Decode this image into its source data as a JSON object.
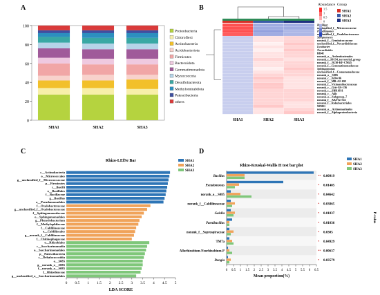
{
  "panel_letters": [
    "A",
    "B",
    "C",
    "D"
  ],
  "chart_data": [
    {
      "panel": "A",
      "type": "bar",
      "stacked": true,
      "categories": [
        "SHA1",
        "SHA2",
        "SHA3"
      ],
      "ylim": [
        0,
        100
      ],
      "yticks": [
        "0",
        "20",
        "40",
        "60",
        "80",
        "100"
      ],
      "legend_position": "right",
      "series": [
        {
          "name": "Proteobacteria",
          "color": "#b5d33f",
          "values": [
            27,
            27,
            27
          ]
        },
        {
          "name": "Chloroflexi",
          "color": "#f7efa9",
          "values": [
            7,
            7,
            6
          ]
        },
        {
          "name": "Actinobacteria",
          "color": "#f2c02a",
          "values": [
            8,
            8,
            10
          ]
        },
        {
          "name": "Acidobacteriota",
          "color": "#f8d2cc",
          "values": [
            5,
            6,
            5
          ]
        },
        {
          "name": "Firmicutes",
          "color": "#f1a6a6",
          "values": [
            13,
            11,
            11
          ]
        },
        {
          "name": "Bacteroidota",
          "color": "#efc9e0",
          "values": [
            6,
            6,
            6
          ]
        },
        {
          "name": "Gemmatimonadota",
          "color": "#a05a9a",
          "values": [
            10,
            10,
            10
          ]
        },
        {
          "name": "Myxococcota",
          "color": "#b5d4e8",
          "values": [
            6,
            6,
            6
          ]
        },
        {
          "name": "Desulfobacterota",
          "color": "#39a8a4",
          "values": [
            6,
            6,
            6
          ]
        },
        {
          "name": "Methylomirabilota",
          "color": "#2c8fbf",
          "values": [
            4,
            5,
            5
          ]
        },
        {
          "name": "Patescibacteria",
          "color": "#3e4fa0",
          "values": [
            3,
            3,
            3
          ]
        },
        {
          "name": "others",
          "color": "#d93a3a",
          "values": [
            5,
            5,
            5
          ]
        }
      ]
    },
    {
      "panel": "B",
      "type": "heatmap",
      "columns": [
        "SHA1",
        "SHA2",
        "SHA3"
      ],
      "column_colors": [
        "#d73027",
        "#3b5ba8",
        "#1e2f80"
      ],
      "legend_title": "Abundance",
      "group_title": "Group",
      "scale_ticks": [
        "1.5",
        "1",
        "0.5",
        "0",
        "-0.5",
        "-1",
        "-1.5"
      ],
      "rows": [
        {
          "label": "Bacillus",
          "italic": true,
          "values": [
            1.2,
            -0.6,
            -0.6
          ]
        },
        {
          "label": "unclassified_f__Micrococcaceae",
          "italic": false,
          "values": [
            1.2,
            -0.6,
            -0.6
          ]
        },
        {
          "label": "Pseudomonas",
          "italic": true,
          "values": [
            1.2,
            -0.7,
            -0.5
          ]
        },
        {
          "label": "unclassified_f__Oxalobacteraceae",
          "italic": false,
          "values": [
            1.1,
            -0.6,
            -0.5
          ]
        },
        {
          "label": "Streptomyces",
          "italic": true,
          "values": [
            -0.3,
            0.1,
            0.2
          ]
        },
        {
          "label": "norank_f__Geminicoccaceae",
          "italic": false,
          "values": [
            -0.3,
            0.1,
            0.2
          ]
        },
        {
          "label": "unclassified_f__Nocardioidaceae",
          "italic": false,
          "values": [
            -0.3,
            0.0,
            0.3
          ]
        },
        {
          "label": "Lysobacter",
          "italic": true,
          "values": [
            -0.3,
            0.1,
            0.2
          ]
        },
        {
          "label": "Nocardioides",
          "italic": true,
          "values": [
            -0.3,
            0.0,
            0.3
          ]
        },
        {
          "label": "RB41",
          "italic": false,
          "values": [
            -0.3,
            0.1,
            0.2
          ]
        },
        {
          "label": "norank_o__Ardenticatenales",
          "italic": false,
          "values": [
            -0.3,
            0.1,
            0.2
          ]
        },
        {
          "label": "norank_c_S0134_terrestrial_group",
          "italic": false,
          "values": [
            -0.3,
            0.2,
            0.1
          ]
        },
        {
          "label": "norank_f__JG30-KF-CM45",
          "italic": false,
          "values": [
            -0.3,
            0.1,
            0.2
          ]
        },
        {
          "label": "norank_f__Gemmatimonadaceae",
          "italic": false,
          "values": [
            -0.3,
            0.1,
            0.2
          ]
        },
        {
          "label": "Sphingomonas",
          "italic": true,
          "values": [
            -0.3,
            0.0,
            0.3
          ]
        },
        {
          "label": "unclassified_f__Comamonadaceae",
          "italic": false,
          "values": [
            -0.3,
            0.1,
            0.2
          ]
        },
        {
          "label": "norank_o__S085",
          "italic": false,
          "values": [
            -0.3,
            0.2,
            0.2
          ]
        },
        {
          "label": "norank_c__KD4-96",
          "italic": false,
          "values": [
            -0.3,
            0.3,
            0.1
          ]
        },
        {
          "label": "norank_f__MB-A2-108",
          "italic": false,
          "values": [
            -0.3,
            0.2,
            0.1
          ]
        },
        {
          "label": "norank_f__Vicinamibacteraceae",
          "italic": false,
          "values": [
            -0.3,
            0.3,
            0.1
          ]
        },
        {
          "label": "norank_c__Gitt-GS-136",
          "italic": false,
          "values": [
            -0.3,
            0.3,
            0.1
          ]
        },
        {
          "label": "norank_c__SBR1031",
          "italic": false,
          "values": [
            -0.3,
            0.2,
            0.2
          ]
        },
        {
          "label": "norank_c__A4b",
          "italic": false,
          "values": [
            -0.3,
            0.2,
            0.2
          ]
        },
        {
          "label": "norank_o__Subgroup_7",
          "italic": false,
          "values": [
            -0.3,
            0.2,
            0.2
          ]
        },
        {
          "label": "norank_f__AKYG1722",
          "italic": false,
          "values": [
            -0.3,
            0.2,
            0.2
          ]
        },
        {
          "label": "norank_f__Rokubacteriales",
          "italic": false,
          "values": [
            -0.3,
            0.2,
            0.1
          ]
        },
        {
          "label": "MND1",
          "italic": false,
          "values": [
            -0.3,
            0.3,
            0.1
          ]
        },
        {
          "label": "norank_o__Actinomarinales",
          "italic": false,
          "values": [
            -0.3,
            0.1,
            0.2
          ]
        },
        {
          "label": "norank_f__Alphaproteobacteria",
          "italic": false,
          "values": [
            -0.3,
            0.1,
            0.3
          ]
        }
      ]
    },
    {
      "panel": "C",
      "type": "bar",
      "orientation": "horizontal",
      "title": "Rhizo-LEfSe Bar",
      "xlabel": "LDA SCORE",
      "xlim": [
        0,
        5
      ],
      "xticks": [
        "0",
        "0.5",
        "1",
        "1.5",
        "2",
        "2.5",
        "3",
        "3.5",
        "4",
        "4.5",
        "5"
      ],
      "legend_position": "right",
      "groups": [
        {
          "name": "SHA1",
          "color": "#2e75b6"
        },
        {
          "name": "SHA2",
          "color": "#f0a35a"
        },
        {
          "name": "SHA3",
          "color": "#7fc77a"
        }
      ],
      "bars": [
        {
          "label": "c__Actinobacteria",
          "group": "SHA1",
          "value": 4.75
        },
        {
          "label": "o__Micrococcales",
          "group": "SHA1",
          "value": 4.72
        },
        {
          "label": "g__unclassified_f__Micrococcaceae",
          "group": "SHA1",
          "value": 4.68
        },
        {
          "label": "p__Firmicutes",
          "group": "SHA1",
          "value": 4.65
        },
        {
          "label": "c__Bacilli",
          "group": "SHA1",
          "value": 4.62
        },
        {
          "label": "o__Bacillales",
          "group": "SHA1",
          "value": 4.58
        },
        {
          "label": "f__Bacillaceae",
          "group": "SHA1",
          "value": 4.55
        },
        {
          "label": "g__Bacillus",
          "group": "SHA1",
          "value": 4.5
        },
        {
          "label": "o__Pseudomonadales",
          "group": "SHA1",
          "value": 4.45
        },
        {
          "label": "f__Oxalobacteraceae",
          "group": "SHA2",
          "value": 3.85
        },
        {
          "label": "g__unclassified_f__Oxalobacteraceae",
          "group": "SHA2",
          "value": 3.7
        },
        {
          "label": "f__Sphingomonadaceae",
          "group": "SHA2",
          "value": 3.55
        },
        {
          "label": "o__Sphingomonadales",
          "group": "SHA2",
          "value": 3.45
        },
        {
          "label": "g__Phenylobacterium",
          "group": "SHA2",
          "value": 3.35
        },
        {
          "label": "f__Methylophilaceae",
          "group": "SHA2",
          "value": 3.3
        },
        {
          "label": "f__Caldilineaceae",
          "group": "SHA2",
          "value": 3.2
        },
        {
          "label": "o__Caldilineales",
          "group": "SHA2",
          "value": 3.15
        },
        {
          "label": "g__norank_f__Caldilineaceae",
          "group": "SHA2",
          "value": 3.1
        },
        {
          "label": "f__Chitinophagaceae",
          "group": "SHA2",
          "value": 3.0
        },
        {
          "label": "o__Rhizobiales",
          "group": "SHA3",
          "value": 3.8
        },
        {
          "label": "c__Saccharimonadia",
          "group": "SHA3",
          "value": 3.7
        },
        {
          "label": "o__Saccharimonadales",
          "group": "SHA3",
          "value": 3.65
        },
        {
          "label": "p__Patescibacteria",
          "group": "SHA3",
          "value": 3.6
        },
        {
          "label": "c__Dehalococcoidia",
          "group": "SHA3",
          "value": 3.55
        },
        {
          "label": "o__S085",
          "group": "SHA3",
          "value": 3.5
        },
        {
          "label": "g__norank_o__S085",
          "group": "SHA3",
          "value": 3.5
        },
        {
          "label": "f__norank_o__S085",
          "group": "SHA3",
          "value": 3.45
        },
        {
          "label": "f__Rhizobiaceae",
          "group": "SHA3",
          "value": 3.4
        },
        {
          "label": "g__unclassified_o__Saccharimonadales",
          "group": "SHA3",
          "value": 3.2
        }
      ]
    },
    {
      "panel": "D",
      "type": "bar",
      "orientation": "horizontal",
      "title": "Rhizo-Kruskal-Wallis H test bar plot",
      "xlabel": "Mean proportion(%)",
      "ylabel": "P-value",
      "xlim": [
        0,
        6.5
      ],
      "xticks": [
        "0",
        "0.5",
        "1",
        "1.5",
        "2",
        "2.5",
        "3",
        "3.5",
        "4",
        "4.5",
        "5",
        "5.5",
        "6",
        "6.5"
      ],
      "legend_position": "top-right",
      "groups": [
        {
          "name": "SHA1",
          "color": "#2e75b6"
        },
        {
          "name": "SHA2",
          "color": "#f0a35a"
        },
        {
          "name": "SHA3",
          "color": "#7fc77a"
        }
      ],
      "taxa": [
        {
          "label": "Bacillus",
          "italic": true,
          "values": [
            6.3,
            1.3,
            1.3
          ],
          "pvalue": "0.00919",
          "stars": "**"
        },
        {
          "label": "Pseudomonas",
          "italic": true,
          "values": [
            4.1,
            0.9,
            0.6
          ],
          "pvalue": "0.01485",
          "stars": "*"
        },
        {
          "label": "norank_o__S085",
          "italic": false,
          "values": [
            0.3,
            1.0,
            1.8
          ],
          "pvalue": "0.04642",
          "stars": "*"
        },
        {
          "label": "norank_f__Caldilineaceae",
          "italic": false,
          "values": [
            0.3,
            0.6,
            0.4
          ],
          "pvalue": "0.03865",
          "stars": "*"
        },
        {
          "label": "Gaiella",
          "italic": true,
          "values": [
            0.3,
            0.6,
            0.5
          ],
          "pvalue": "0.01837",
          "stars": "*"
        },
        {
          "label": "Paenibacillus",
          "italic": true,
          "values": [
            0.4,
            0.2,
            0.2
          ],
          "pvalue": "0.01036",
          "stars": "*"
        },
        {
          "label": "norank_f__Saprospiraceae",
          "italic": false,
          "values": [
            0.2,
            0.5,
            0.3
          ],
          "pvalue": "0.0305",
          "stars": "*"
        },
        {
          "label": "TM7a",
          "italic": false,
          "values": [
            0.2,
            0.4,
            0.5
          ],
          "pvalue": "0.04929",
          "stars": "*"
        },
        {
          "label": "Allorhizobium-Neorhizobium-P",
          "italic": false,
          "values": [
            0.1,
            0.2,
            0.4
          ],
          "pvalue": "0.00637",
          "stars": "**"
        },
        {
          "label": "Dongia",
          "italic": true,
          "values": [
            0.1,
            0.3,
            0.2
          ],
          "pvalue": "0.03579",
          "stars": "*"
        }
      ]
    }
  ]
}
